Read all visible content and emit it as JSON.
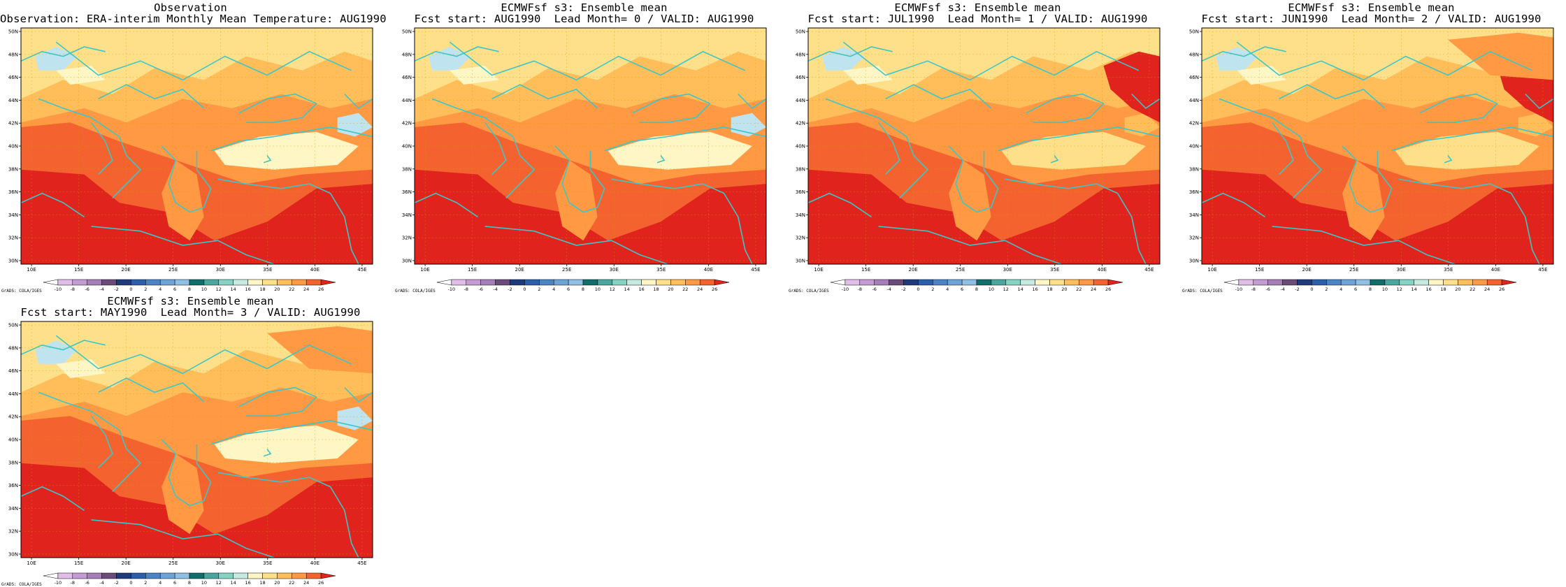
{
  "figure": {
    "colorbar": {
      "levels": [
        "-10",
        "-8",
        "-6",
        "-4",
        "-2",
        "0",
        "2",
        "4",
        "6",
        "8",
        "10",
        "12",
        "14",
        "16",
        "18",
        "20",
        "22",
        "24",
        "26"
      ],
      "colors": [
        "#ffffff",
        "#e1bee7",
        "#c59bd3",
        "#a67fb8",
        "#6a4c7b",
        "#1f3a7a",
        "#2b5fab",
        "#4a84c4",
        "#6ca4d7",
        "#8fbfe2",
        "#0f6e6a",
        "#4aa79e",
        "#86d2c4",
        "#c6eadf",
        "#fff6c6",
        "#ffe08a",
        "#ffbe5a",
        "#ff9944",
        "#f4632f",
        "#e0231d"
      ]
    },
    "lat_labels": [
      "30N",
      "32N",
      "34N",
      "36N",
      "38N",
      "40N",
      "42N",
      "44N",
      "46N",
      "48N",
      "50N"
    ],
    "lon_labels": [
      "10E",
      "15E",
      "20E",
      "25E",
      "30E",
      "35E",
      "40E",
      "45E"
    ],
    "credit": "GrADS: COLA/IGES",
    "panels": [
      {
        "id": "observation",
        "title_line1": "Observation",
        "title_line2": "Observation: ERA-interim Monthly Mean Temperature: AUG1990"
      },
      {
        "id": "lead-0",
        "title_line1": "ECMWFsf s3: Ensemble mean",
        "title_line2": "Fcst start: AUG1990  Lead Month= 0 / VALID: AUG1990"
      },
      {
        "id": "lead-1",
        "title_line1": "ECMWFsf s3: Ensemble mean",
        "title_line2": "Fcst start: JUL1990  Lead Month= 1 / VALID: AUG1990"
      },
      {
        "id": "lead-2",
        "title_line1": "ECMWFsf s3: Ensemble mean",
        "title_line2": "Fcst start: JUN1990  Lead Month= 2 / VALID: AUG1990"
      },
      {
        "id": "lead-3",
        "title_line1": "ECMWFsf s3: Ensemble mean",
        "title_line2": "Fcst start: MAY1990  Lead Month= 3 / VALID: AUG1990"
      }
    ]
  }
}
